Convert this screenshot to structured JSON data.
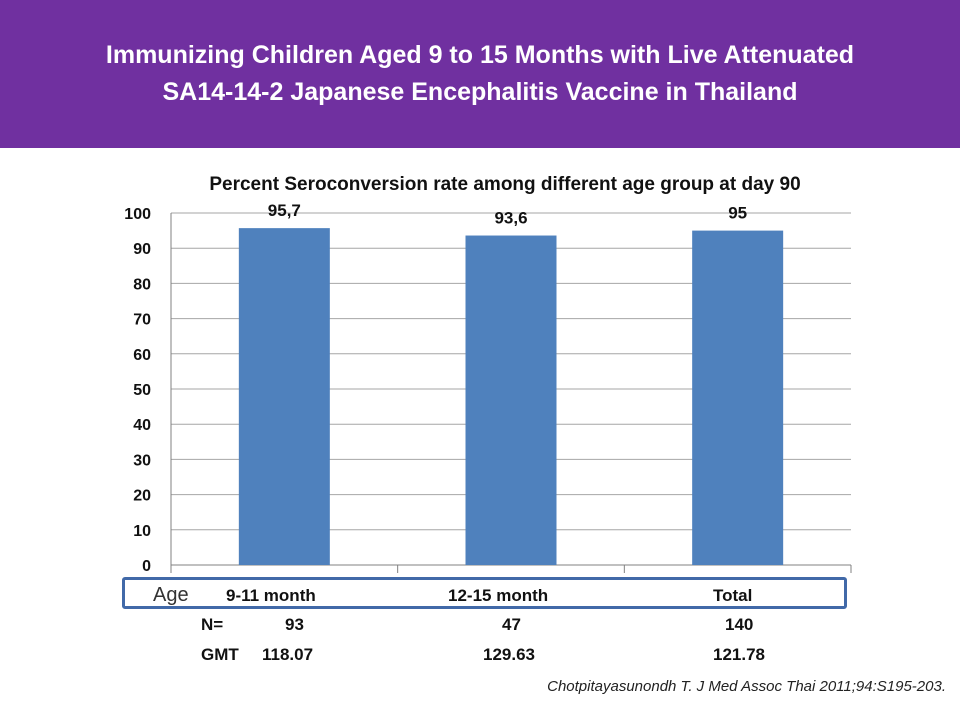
{
  "slide_title": "Immunizing Children Aged 9 to 15 Months with Live Attenuated SA14-14-2 Japanese Encephalitis Vaccine in Thailand",
  "colors": {
    "banner": "#7030a0",
    "bar": "#4f81bd",
    "box_border": "#4169a8"
  },
  "chart_data": {
    "type": "bar",
    "title": "Percent Seroconversion rate among different age group at day 90",
    "categories": [
      "9-11 month",
      "12-15 month",
      "Total"
    ],
    "values": [
      95.7,
      93.6,
      95
    ],
    "data_labels": [
      "95,7",
      "93,6",
      "95"
    ],
    "xlabel": "",
    "ylabel": "",
    "ylim": [
      0,
      100
    ],
    "yticks": [
      "0",
      "10",
      "20",
      "30",
      "40",
      "50",
      "60",
      "70",
      "80",
      "90",
      "100"
    ],
    "grid": true,
    "legend": "none"
  },
  "age_row": {
    "label": "Age",
    "categories": [
      "9-11 month",
      "12-15 month",
      "Total"
    ]
  },
  "n_row": {
    "label": "N=",
    "values": [
      "93",
      "47",
      "140"
    ]
  },
  "gmt_row": {
    "label": "GMT",
    "values": [
      "118.07",
      "129.63",
      "121.78"
    ]
  },
  "citation": "Chotpitayasunondh T. J Med Assoc Thai 2011;94:S195-203."
}
